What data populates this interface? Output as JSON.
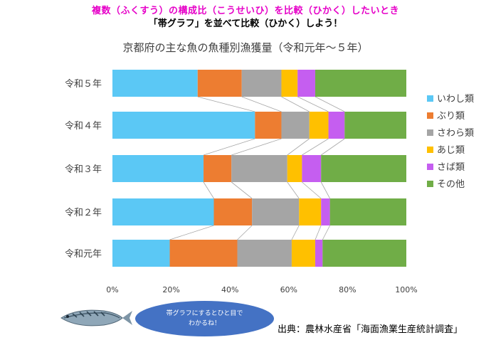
{
  "header": {
    "line1": "複数（ふくすう）の構成比（こうせいひ）を比較（ひかく）したいとき",
    "line2": "「帯グラフ」を並べて比較（ひかく）しよう！"
  },
  "chart_data": {
    "type": "bar",
    "orientation": "horizontal",
    "stacked": "percent",
    "title": "京都府の主な魚の魚種別漁獲量（令和元年～５年）",
    "categories": [
      "令和５年",
      "令和４年",
      "令和３年",
      "令和２年",
      "令和元年"
    ],
    "series": [
      {
        "name": "いわし類",
        "color": "#5bc8f5",
        "values": [
          29,
          48.5,
          31,
          34.5,
          19.5
        ]
      },
      {
        "name": "ぶり類",
        "color": "#ed7d31",
        "values": [
          15,
          9,
          9.5,
          13,
          23
        ]
      },
      {
        "name": "さわら類",
        "color": "#a5a5a5",
        "values": [
          13.5,
          9.5,
          19,
          16,
          18.5
        ]
      },
      {
        "name": "あじ類",
        "color": "#ffc000",
        "values": [
          5.5,
          6.5,
          5,
          7.5,
          8
        ]
      },
      {
        "name": "さば類",
        "color": "#c55ef0",
        "values": [
          6,
          5.5,
          6.5,
          3,
          2.5
        ]
      },
      {
        "name": "その他",
        "color": "#70ad47",
        "values": [
          31,
          21,
          29,
          26,
          28.5
        ]
      }
    ],
    "xlim": [
      0,
      100
    ],
    "xticks": [
      "0%",
      "20%",
      "40%",
      "60%",
      "80%",
      "100%"
    ],
    "legend": "right",
    "grid": false,
    "series_lines": true
  },
  "footer": {
    "source": "出典：農林水産省「海面漁業生産統計調査」",
    "bubble_line1": "帯グラフにするとひと目で",
    "bubble_line2": "わかるね！"
  }
}
